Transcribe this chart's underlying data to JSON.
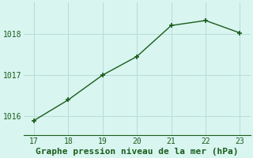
{
  "x": [
    17,
    18,
    19,
    20,
    21,
    22,
    23
  ],
  "y": [
    1015.9,
    1016.4,
    1017.0,
    1017.45,
    1018.2,
    1018.32,
    1018.02
  ],
  "line_color": "#1a5c1a",
  "marker_color": "#1a5c1a",
  "bg_color": "#d8f5f0",
  "grid_color": "#b8ddd8",
  "xlabel": "Graphe pression niveau de la mer (hPa)",
  "xlabel_color": "#1a5c1a",
  "xlim": [
    16.7,
    23.3
  ],
  "ylim": [
    1015.55,
    1018.75
  ],
  "xticks": [
    17,
    18,
    19,
    20,
    21,
    22,
    23
  ],
  "yticks": [
    1016,
    1017,
    1018
  ],
  "tick_color": "#1a5c1a",
  "tick_fontsize": 7,
  "xlabel_fontsize": 8,
  "line_width": 1.0,
  "marker_size": 4.0
}
